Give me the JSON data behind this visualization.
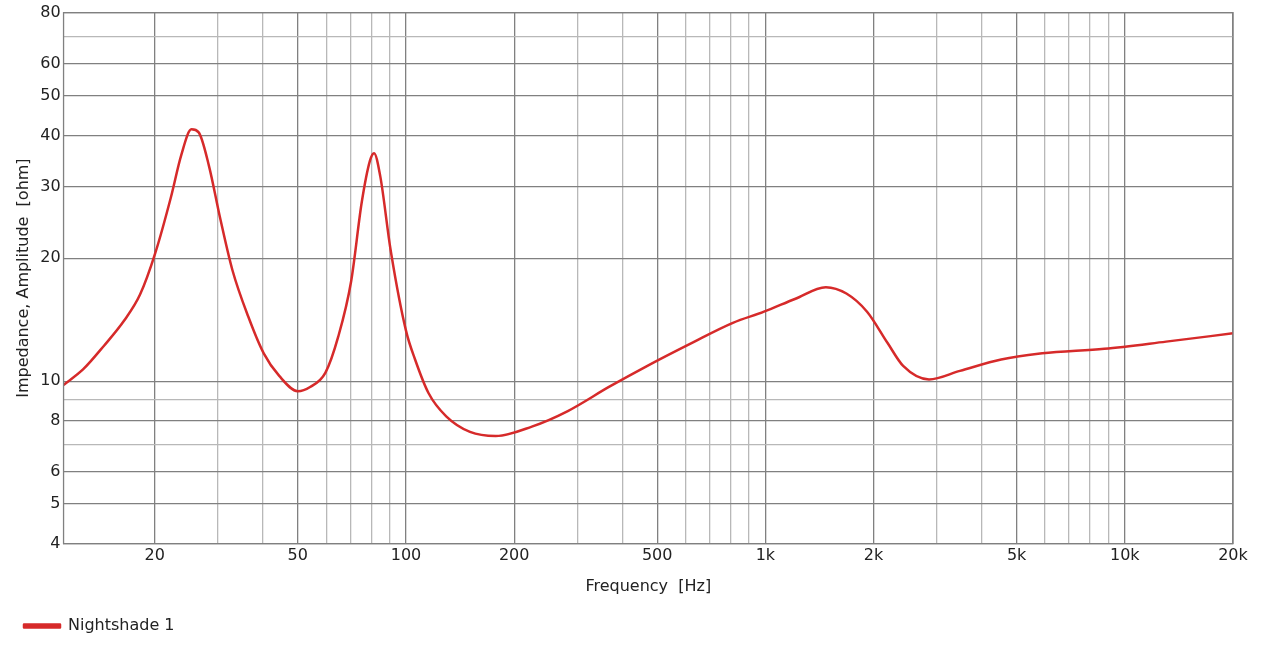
{
  "chart_data": {
    "type": "line",
    "xlabel": "Frequency  [Hz]",
    "ylabel": "Impedance, Amplitude  [ohm]",
    "log": "xy",
    "grid": true,
    "legend": "bottom left",
    "marker": "none",
    "line_style": "solid",
    "xlim": [
      11.15,
      20000
    ],
    "ylim": [
      4,
      80
    ],
    "xticks": [
      {
        "value": 20,
        "label": "20"
      },
      {
        "value": 30,
        "label": null
      },
      {
        "value": 40,
        "label": null
      },
      {
        "value": 50,
        "label": "50"
      },
      {
        "value": 60,
        "label": null
      },
      {
        "value": 70,
        "label": null
      },
      {
        "value": 80,
        "label": null
      },
      {
        "value": 90,
        "label": null
      },
      {
        "value": 100,
        "label": "100"
      },
      {
        "value": 200,
        "label": "200"
      },
      {
        "value": 300,
        "label": null
      },
      {
        "value": 400,
        "label": null
      },
      {
        "value": 500,
        "label": "500"
      },
      {
        "value": 600,
        "label": null
      },
      {
        "value": 700,
        "label": null
      },
      {
        "value": 800,
        "label": null
      },
      {
        "value": 900,
        "label": null
      },
      {
        "value": 1000,
        "label": "1k"
      },
      {
        "value": 2000,
        "label": "2k"
      },
      {
        "value": 3000,
        "label": null
      },
      {
        "value": 4000,
        "label": null
      },
      {
        "value": 5000,
        "label": "5k"
      },
      {
        "value": 6000,
        "label": null
      },
      {
        "value": 7000,
        "label": null
      },
      {
        "value": 8000,
        "label": null
      },
      {
        "value": 9000,
        "label": null
      },
      {
        "value": 10000,
        "label": "10k"
      },
      {
        "value": 20000,
        "label": "20k"
      }
    ],
    "yticks": [
      4,
      5,
      6,
      {
        "value": 7,
        "label": null
      },
      8,
      {
        "value": 9,
        "label": null
      },
      10,
      20,
      30,
      40,
      50,
      60,
      {
        "value": 70,
        "label": null
      },
      80
    ],
    "x": [
      11.15,
      12.65,
      14.43,
      16.46,
      18.2,
      20.1,
      22.2,
      23.7,
      25.3,
      26.5,
      28.3,
      30.4,
      32.9,
      36.4,
      40.2,
      44.4,
      50.0,
      54.1,
      59.7,
      64.7,
      70.4,
      75.3,
      79.4,
      81.5,
      84.8,
      90.6,
      100,
      106,
      115.6,
      129.4,
      150.7,
      177.7,
      224,
      282,
      367,
      478,
      623,
      812,
      991,
      1208,
      1473,
      1680,
      1918,
      2188,
      2417,
      2853,
      3477,
      4529,
      5890,
      8770,
      13030,
      20000
    ],
    "series": [
      {
        "name": "Nightshade 1",
        "color": "#d62a2a",
        "values": [
          9.79,
          10.7,
          12.2,
          14.1,
          16.3,
          20.7,
          28.3,
          35.8,
          41.4,
          40.7,
          33.7,
          25.1,
          18.7,
          14.4,
          11.7,
          10.3,
          9.45,
          9.68,
          10.5,
          12.8,
          17.6,
          27.4,
          34.7,
          36.2,
          31.8,
          21.0,
          13.3,
          11.3,
          9.34,
          8.2,
          7.51,
          7.34,
          7.74,
          8.45,
          9.68,
          11.0,
          12.4,
          13.9,
          14.8,
          15.9,
          17.0,
          16.4,
          14.8,
          12.4,
          10.9,
          10.1,
          10.6,
          11.3,
          11.7,
          12.0,
          12.5,
          13.1
        ]
      }
    ]
  }
}
